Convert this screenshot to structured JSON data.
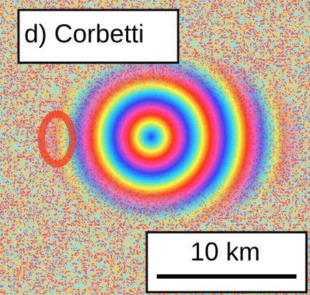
{
  "panel_label": "d) Corbetti",
  "scale_bar": {
    "label": "10 km"
  }
}
